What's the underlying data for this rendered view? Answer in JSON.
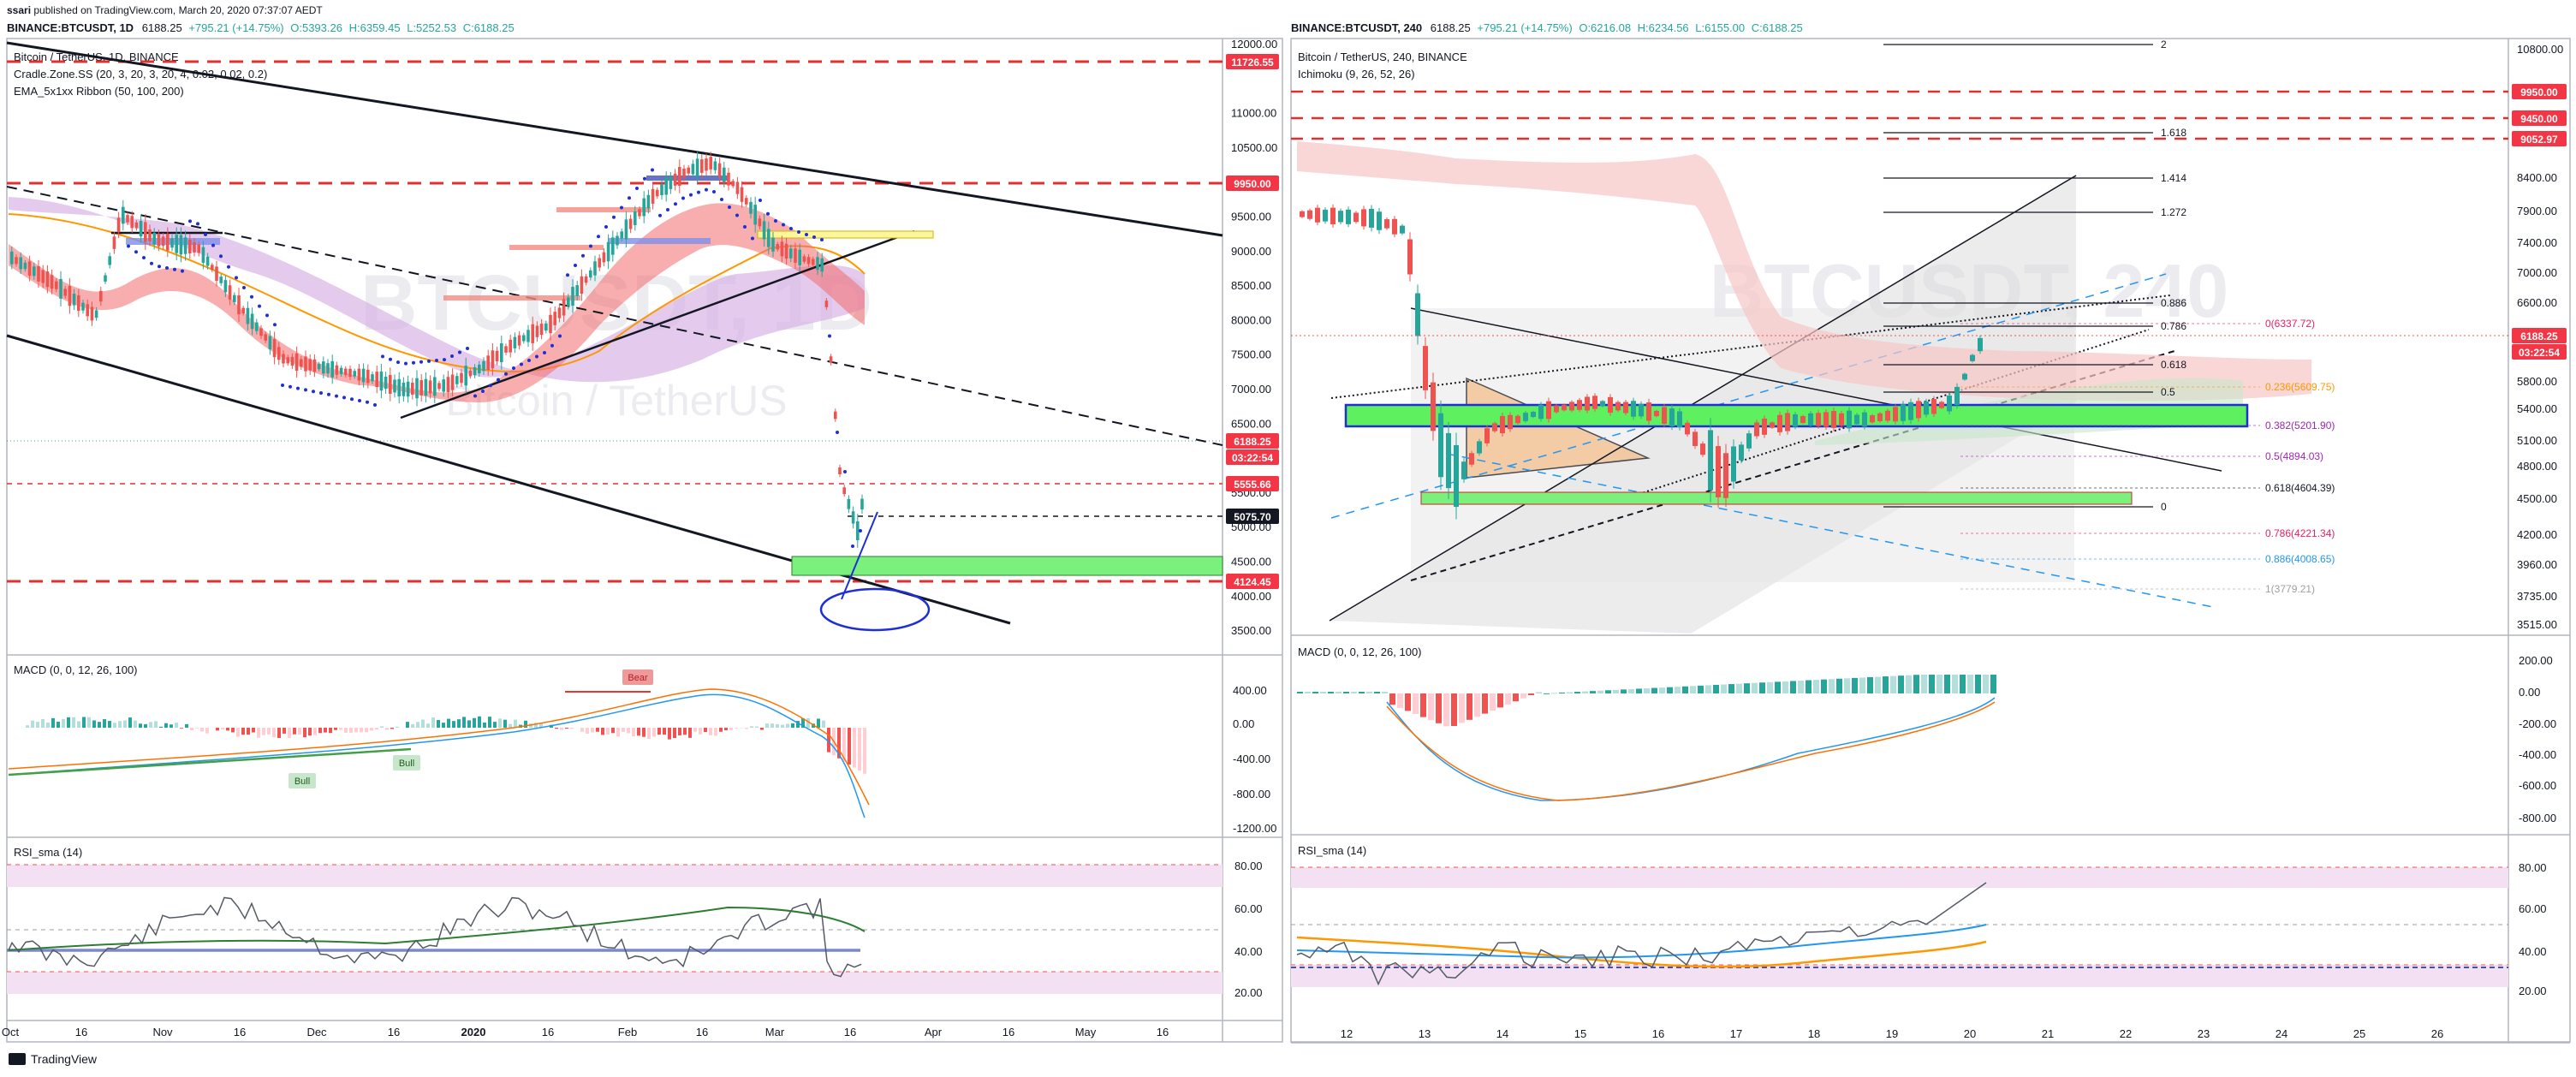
{
  "header": {
    "author": "ssari",
    "published": "published on TradingView.com, March 20, 2020 07:37:07 AEDT"
  },
  "footer": {
    "logo_text": "TradingView"
  },
  "colors": {
    "red_line": "#e03030",
    "price_tag_red": "#f23645",
    "green_zone": "#7cf07c",
    "macd_pos": "#26a69a",
    "macd_neg": "#ef5350",
    "rsi_band": "#f3e1f3",
    "accent_blue": "#2962ff"
  },
  "left_chart": {
    "ticker_line": {
      "symbol": "BINANCE:BTCUSDT, 1D",
      "last": "6188.25",
      "change": "+795.21 (+14.75%)",
      "o": "O:5393.26",
      "h": "H:6359.45",
      "l": "L:5252.53",
      "c": "C:6188.25"
    },
    "watermark": "BTCUSDT, 1D",
    "watermark_sub": "Bitcoin / TetherUS",
    "legend": [
      "Bitcoin / TetherUS, 1D, BINANCE",
      "Cradle.Zone.SS (20, 3, 20, 3, 20, 4, 0.02, 0.02, 0.2)",
      "EMA_5x1xx Ribbon (50, 100, 200)"
    ],
    "y_axis": [
      "12000.00",
      "11500.00",
      "11000.00",
      "10500.00",
      "10000.00",
      "9500.00",
      "9000.00",
      "8500.00",
      "8000.00",
      "7500.00",
      "7000.00",
      "6500.00",
      "6000.00",
      "5500.00",
      "5000.00",
      "4500.00",
      "4000.00",
      "3500.00"
    ],
    "price_tags": [
      {
        "label": "11726.55",
        "kind": "red"
      },
      {
        "label": "9950.00",
        "kind": "red"
      },
      {
        "label": "6188.25",
        "kind": "red"
      },
      {
        "label": "03:22:54",
        "kind": "red"
      },
      {
        "label": "5555.66",
        "kind": "red"
      },
      {
        "label": "5075.70",
        "kind": "black"
      },
      {
        "label": "4124.45",
        "kind": "red"
      }
    ],
    "macd_title": "MACD (0, 0, 12, 26, 100)",
    "macd_axis": [
      "400.00",
      "0.00",
      "-400.00",
      "-800.00",
      "-1200.00"
    ],
    "macd_labels": [
      "Bear",
      "Bull",
      "Bull"
    ],
    "rsi_title": "RSI_sma (14)",
    "rsi_axis": [
      "80.00",
      "60.00",
      "40.00",
      "20.00"
    ],
    "x_axis": [
      "Oct",
      "16",
      "Nov",
      "16",
      "Dec",
      "16",
      "2020",
      "16",
      "Feb",
      "16",
      "Mar",
      "16",
      "Apr",
      "16",
      "May",
      "16"
    ]
  },
  "right_chart": {
    "ticker_line": {
      "symbol": "BINANCE:BTCUSDT, 240",
      "last": "6188.25",
      "change": "+795.21 (+14.75%)",
      "o": "O:6216.08",
      "h": "H:6234.56",
      "l": "L:6155.00",
      "c": "C:6188.25"
    },
    "watermark": "BTCUSDT, 240",
    "legend": [
      "Bitcoin / TetherUS, 240, BINANCE",
      "Ichimoku (9, 26, 52, 26)"
    ],
    "y_axis": [
      "10800.00",
      "9950.00",
      "9450.00",
      "9052.97",
      "8400.00",
      "7900.00",
      "7400.00",
      "7000.00",
      "6600.00",
      "6188.25",
      "03:22:54",
      "5800.00",
      "5400.00",
      "5100.00",
      "4800.00",
      "4500.00",
      "4200.00",
      "3960.00",
      "3735.00",
      "3515.00"
    ],
    "fib_ext": [
      "2",
      "1.618",
      "1.414",
      "1.272",
      "0.886",
      "0.786",
      "0.618",
      "0.5",
      "0"
    ],
    "fib_ret": [
      {
        "label": "0(6337.72)",
        "color": "#e91e63"
      },
      {
        "label": "0.236(5609.75)",
        "color": "#ff9800"
      },
      {
        "label": "0.382(5201.90)",
        "color": "#9c27b0"
      },
      {
        "label": "0.5(4894.03)",
        "color": "#9c27b0"
      },
      {
        "label": "0.618(4604.39)",
        "color": "#131722"
      },
      {
        "label": "0.786(4221.34)",
        "color": "#e91e63"
      },
      {
        "label": "0.886(4008.65)",
        "color": "#2196f3"
      },
      {
        "label": "1(3779.21)",
        "color": "#9e9e9e"
      }
    ],
    "macd_title": "MACD (0, 0, 12, 26, 100)",
    "macd_axis": [
      "200.00",
      "0.00",
      "-200.00",
      "-400.00",
      "-600.00",
      "-800.00"
    ],
    "rsi_title": "RSI_sma (14)",
    "rsi_axis": [
      "80.00",
      "60.00",
      "40.00",
      "20.00"
    ],
    "x_axis": [
      "12",
      "13",
      "14",
      "15",
      "16",
      "17",
      "18",
      "19",
      "20",
      "21",
      "22",
      "23",
      "24",
      "25",
      "26"
    ]
  },
  "chart_data": [
    {
      "type": "candlestick",
      "panel": "BINANCE:BTCUSDT, 1D",
      "y_axis_ticks": [
        12000,
        11500,
        11000,
        10500,
        10000,
        9500,
        9000,
        8500,
        8000,
        7500,
        7000,
        6500,
        6000,
        5500,
        5000,
        4500,
        4000,
        3500
      ],
      "x_ticks": [
        "Oct",
        "16",
        "Nov",
        "16",
        "Dec",
        "16",
        "2020",
        "16",
        "Feb",
        "16",
        "Mar",
        "16",
        "Apr",
        "16",
        "May",
        "16"
      ],
      "horizontal_levels": [
        11726.55,
        9950.0,
        5555.66,
        5075.7,
        4124.45
      ],
      "last_price": 6188.25,
      "approx_close_path": [
        {
          "x": "Oct 1",
          "y": 8300
        },
        {
          "x": "Oct 16",
          "y": 8000
        },
        {
          "x": "Oct 26",
          "y": 9500
        },
        {
          "x": "Nov 10",
          "y": 8800
        },
        {
          "x": "Nov 25",
          "y": 7100
        },
        {
          "x": "Dec 16",
          "y": 6600
        },
        {
          "x": "Jan 1",
          "y": 7200
        },
        {
          "x": "Jan 16",
          "y": 8800
        },
        {
          "x": "Feb 1",
          "y": 9400
        },
        {
          "x": "Feb 13",
          "y": 10300
        },
        {
          "x": "Feb 29",
          "y": 8600
        },
        {
          "x": "Mar 8",
          "y": 8000
        },
        {
          "x": "Mar 12",
          "y": 4900
        },
        {
          "x": "Mar 16",
          "y": 5000
        },
        {
          "x": "Mar 19",
          "y": 6188.25
        }
      ]
    },
    {
      "type": "candlestick",
      "panel": "BINANCE:BTCUSDT, 240",
      "y_axis_ticks": [
        10800,
        9950,
        9450,
        9052.97,
        8400,
        7900,
        7400,
        7000,
        6600,
        6188.25,
        5800,
        5400,
        5100,
        4800,
        4500,
        4200,
        3960,
        3735,
        3515
      ],
      "x_ticks": [
        "12",
        "13",
        "14",
        "15",
        "16",
        "17",
        "18",
        "19",
        "20",
        "21",
        "22",
        "23",
        "24",
        "25",
        "26"
      ],
      "fib_retracement": {
        "0": 6337.72,
        "0.236": 5609.75,
        "0.382": 5201.9,
        "0.5": 4894.03,
        "0.618": 4604.39,
        "0.786": 4221.34,
        "0.886": 4008.65,
        "1": 3779.21
      },
      "approx_close_path": [
        {
          "x": "12",
          "y": 7900
        },
        {
          "x": "12.5",
          "y": 7400
        },
        {
          "x": "13",
          "y": 5600
        },
        {
          "x": "13.5",
          "y": 4900
        },
        {
          "x": "14",
          "y": 5300
        },
        {
          "x": "15",
          "y": 5350
        },
        {
          "x": "16",
          "y": 5200
        },
        {
          "x": "16.5",
          "y": 4700
        },
        {
          "x": "17",
          "y": 5100
        },
        {
          "x": "18",
          "y": 5300
        },
        {
          "x": "19",
          "y": 5350
        },
        {
          "x": "19.5",
          "y": 5600
        },
        {
          "x": "20",
          "y": 6188.25
        }
      ]
    }
  ]
}
